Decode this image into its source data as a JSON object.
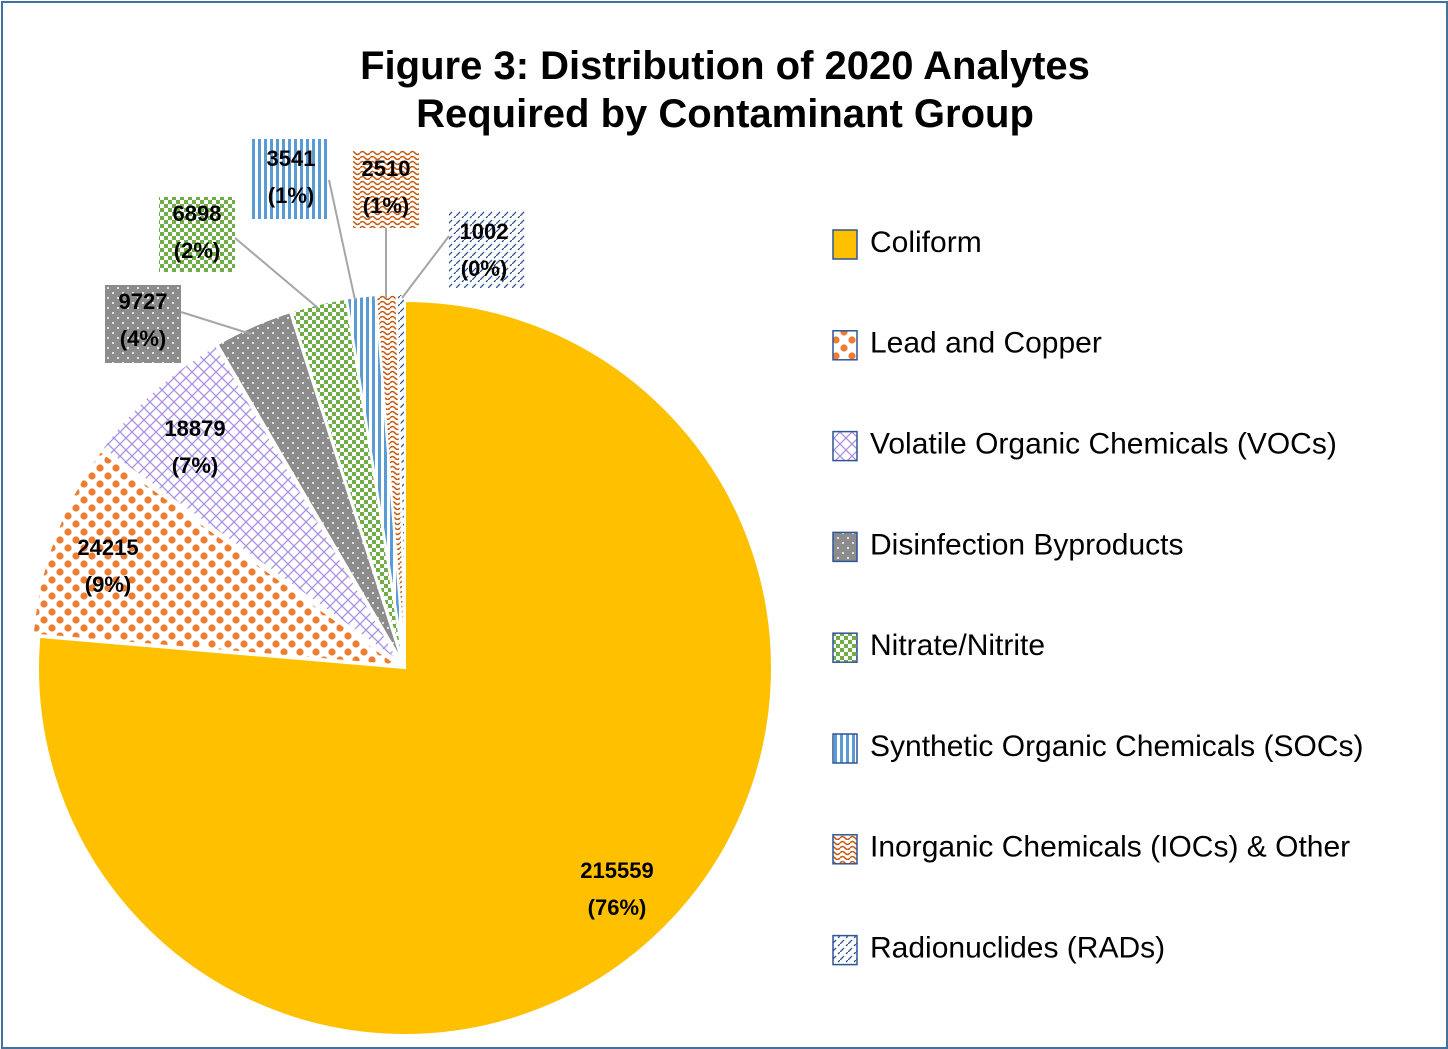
{
  "chart_data": {
    "type": "pie",
    "title": "Figure 3: Distribution of 2020 Analytes Required by Contaminant Group",
    "categories": [
      "Coliform",
      "Lead and Copper",
      "Volatile Organic Chemicals (VOCs)",
      "Disinfection Byproducts",
      "Nitrate/Nitrite",
      "Synthetic Organic Chemicals (SOCs)",
      "Inorganic Chemicals (IOCs) & Other",
      "Radionuclides (RADs)"
    ],
    "values": [
      215559,
      24215,
      18879,
      9727,
      6898,
      3541,
      2510,
      1002
    ],
    "percents": [
      76,
      9,
      7,
      4,
      2,
      1,
      1,
      0
    ],
    "percent_labels": [
      "(76%)",
      "(9%)",
      "(7%)",
      "(4%)",
      "(2%)",
      "(1%)",
      "(1%)",
      "(0%)"
    ],
    "colors": [
      "#ffc000",
      "#ed7d31",
      "#a98ee0",
      "#8c8c8c",
      "#70ad47",
      "#5b9bd5",
      "#c55a11",
      "#2f5597"
    ],
    "legend": "right"
  }
}
